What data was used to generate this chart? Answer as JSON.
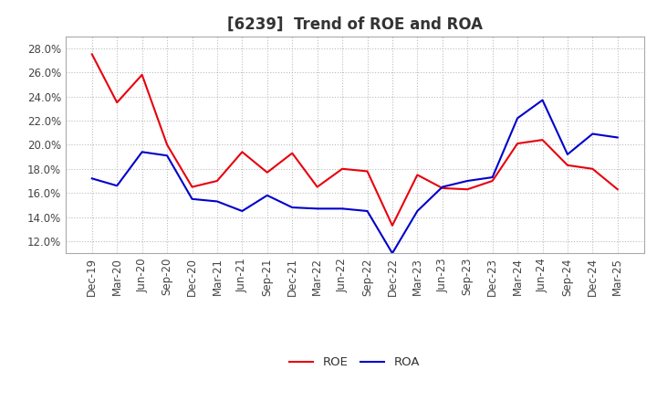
{
  "title": "[6239]  Trend of ROE and ROA",
  "x_labels": [
    "Dec-19",
    "Mar-20",
    "Jun-20",
    "Sep-20",
    "Dec-20",
    "Mar-21",
    "Jun-21",
    "Sep-21",
    "Dec-21",
    "Mar-22",
    "Jun-22",
    "Sep-22",
    "Dec-22",
    "Mar-23",
    "Jun-23",
    "Sep-23",
    "Dec-23",
    "Mar-24",
    "Jun-24",
    "Sep-24",
    "Dec-24",
    "Mar-25"
  ],
  "roe": [
    27.5,
    23.5,
    25.8,
    20.0,
    16.5,
    17.0,
    19.4,
    17.7,
    19.3,
    16.5,
    18.0,
    17.8,
    13.3,
    17.5,
    16.4,
    16.3,
    17.0,
    20.1,
    20.4,
    18.3,
    18.0,
    16.3
  ],
  "roa": [
    17.2,
    16.6,
    19.4,
    19.1,
    15.5,
    15.3,
    14.5,
    15.8,
    14.8,
    14.7,
    14.7,
    14.5,
    11.0,
    14.5,
    16.5,
    17.0,
    17.3,
    22.2,
    23.7,
    19.2,
    20.9,
    20.6
  ],
  "roe_color": "#e8000d",
  "roa_color": "#0000cc",
  "ylim": [
    11.0,
    29.0
  ],
  "yticks": [
    12.0,
    14.0,
    16.0,
    18.0,
    20.0,
    22.0,
    24.0,
    26.0,
    28.0
  ],
  "background_color": "#ffffff",
  "grid_color": "#bbbbbb",
  "legend_roe": "ROE",
  "legend_roa": "ROA",
  "title_fontsize": 12,
  "tick_fontsize": 8.5,
  "line_width": 1.5
}
